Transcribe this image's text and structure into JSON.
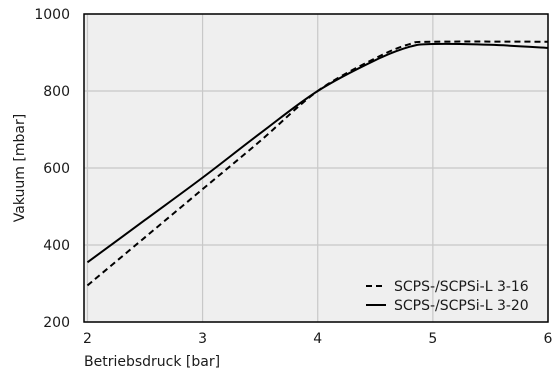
{
  "chart_data": {
    "type": "line",
    "title": "",
    "xlabel": "Betriebsdruck [bar]",
    "ylabel": "Vakuum [mbar]",
    "xlim": [
      1.97,
      6.0
    ],
    "ylim": [
      200,
      1000
    ],
    "xticks": [
      2,
      3,
      4,
      5,
      6
    ],
    "yticks": [
      200,
      400,
      600,
      800,
      1000
    ],
    "grid": true,
    "legend_position": "bottom-right",
    "series": [
      {
        "name": "SCPS-/SCPSi-L 3-16",
        "style": "dashed",
        "color": "#000000",
        "x": [
          2.0,
          2.5,
          3.0,
          3.5,
          4.0,
          4.5,
          4.8,
          5.0,
          6.0
        ],
        "y": [
          295,
          420,
          545,
          670,
          800,
          885,
          922,
          928,
          928
        ]
      },
      {
        "name": "SCPS-/SCPSi-L 3-20",
        "style": "solid",
        "color": "#000000",
        "x": [
          2.0,
          2.5,
          3.0,
          3.5,
          4.0,
          4.5,
          4.8,
          5.0,
          5.5,
          6.0
        ],
        "y": [
          355,
          465,
          575,
          690,
          800,
          880,
          915,
          922,
          920,
          912
        ]
      }
    ]
  }
}
